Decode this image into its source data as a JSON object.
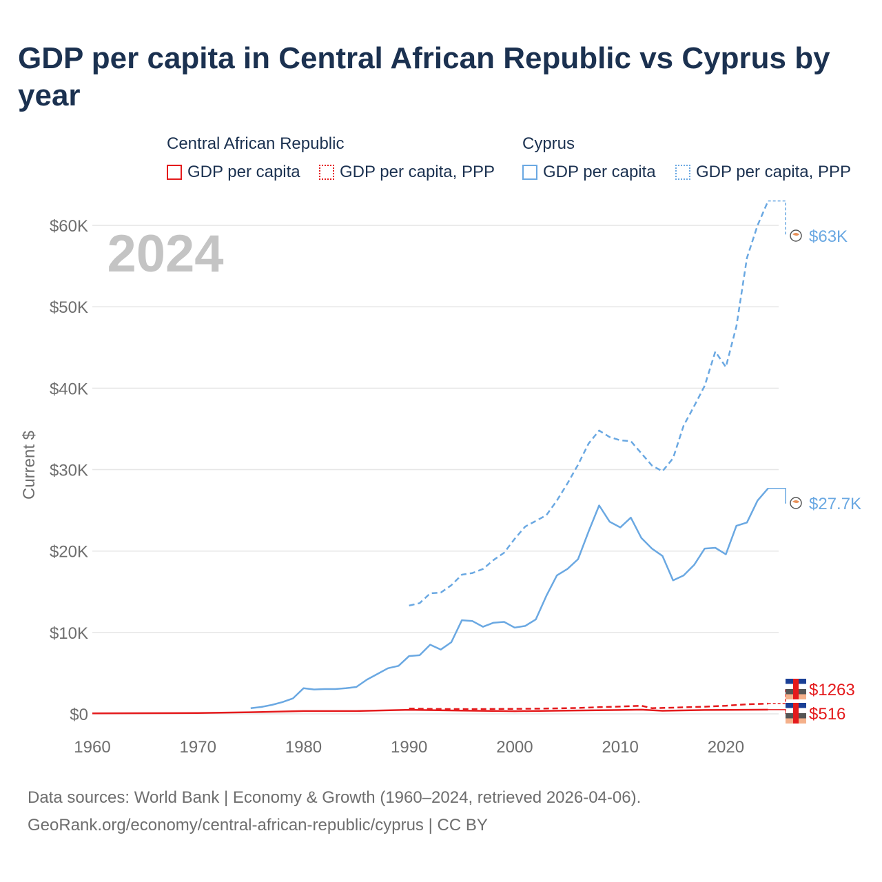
{
  "title": "GDP per capita in Central African Republic vs Cyprus by year",
  "legend": {
    "groups": [
      {
        "name": "Central African Republic",
        "color": "#e41a1c",
        "items": [
          "GDP per capita",
          "GDP per capita, PPP"
        ]
      },
      {
        "name": "Cyprus",
        "color": "#6aa8e2",
        "items": [
          "GDP per capita",
          "GDP per capita, PPP"
        ]
      }
    ]
  },
  "footer": {
    "line1": "Data sources: World Bank | Economy & Growth (1960–2024, retrieved 2026-04-06).",
    "line2": "GeoRank.org/economy/central-african-republic/cyprus | CC BY"
  },
  "chart_data": {
    "type": "line",
    "year_label": "2024",
    "ylabel": "Current $",
    "xlim": [
      1960,
      2025
    ],
    "ylim": [
      0,
      65000
    ],
    "x_ticks": [
      1960,
      1970,
      1980,
      1990,
      2000,
      2010,
      2020
    ],
    "x_tick_labels": [
      "1960",
      "1970",
      "1980",
      "1990",
      "2000",
      "2010",
      "2020"
    ],
    "y_ticks": [
      0,
      10000,
      20000,
      30000,
      40000,
      50000,
      60000
    ],
    "y_tick_labels": [
      "$0",
      "$10K",
      "$20K",
      "$30K",
      "$40K",
      "$50K",
      "$60K"
    ],
    "series": [
      {
        "name": "Cyprus GDP per capita, PPP",
        "country": "Cyprus",
        "color": "#6aa8e2",
        "dashed": true,
        "end_label": "$63K",
        "x": [
          1990,
          1991,
          1992,
          1993,
          1994,
          1995,
          1996,
          1997,
          1998,
          1999,
          2000,
          2001,
          2002,
          2003,
          2004,
          2005,
          2006,
          2007,
          2008,
          2009,
          2010,
          2011,
          2012,
          2013,
          2014,
          2015,
          2016,
          2017,
          2018,
          2019,
          2020,
          2021,
          2022,
          2023,
          2024
        ],
        "values": [
          13300,
          13600,
          14800,
          14900,
          15800,
          17100,
          17300,
          17800,
          18900,
          19800,
          21500,
          23000,
          23700,
          24400,
          26200,
          28300,
          30600,
          33200,
          34800,
          34000,
          33600,
          33500,
          32000,
          30500,
          29800,
          31400,
          35400,
          37800,
          40300,
          44500,
          42600,
          47600,
          56000,
          60000,
          63000
        ]
      },
      {
        "name": "Cyprus GDP per capita",
        "country": "Cyprus",
        "color": "#6aa8e2",
        "dashed": false,
        "end_label": "$27.7K",
        "x": [
          1975,
          1976,
          1977,
          1978,
          1979,
          1980,
          1981,
          1982,
          1983,
          1984,
          1985,
          1986,
          1987,
          1988,
          1989,
          1990,
          1991,
          1992,
          1993,
          1994,
          1995,
          1996,
          1997,
          1998,
          1999,
          2000,
          2001,
          2002,
          2003,
          2004,
          2005,
          2006,
          2007,
          2008,
          2009,
          2010,
          2011,
          2012,
          2013,
          2014,
          2015,
          2016,
          2017,
          2018,
          2019,
          2020,
          2021,
          2022,
          2023,
          2024
        ],
        "values": [
          700,
          850,
          1100,
          1450,
          1900,
          3150,
          3000,
          3050,
          3050,
          3150,
          3300,
          4200,
          4900,
          5600,
          5900,
          7100,
          7200,
          8500,
          7900,
          8800,
          11500,
          11400,
          10700,
          11200,
          11300,
          10600,
          10800,
          11600,
          14500,
          17000,
          17800,
          19000,
          22400,
          25600,
          23600,
          22900,
          24100,
          21600,
          20300,
          19400,
          16400,
          17000,
          18300,
          20300,
          20400,
          19600,
          23100,
          23500,
          26200,
          27700
        ]
      },
      {
        "name": "Central African Republic GDP per capita, PPP",
        "country": "Central African Republic",
        "color": "#e41a1c",
        "dashed": true,
        "end_label": "$1263",
        "x": [
          1990,
          1992,
          1994,
          1996,
          1998,
          2000,
          2002,
          2004,
          2006,
          2008,
          2010,
          2012,
          2013,
          2015,
          2018,
          2020,
          2022,
          2024
        ],
        "values": [
          650,
          610,
          590,
          580,
          600,
          620,
          640,
          680,
          730,
          820,
          900,
          1000,
          700,
          760,
          880,
          1000,
          1180,
          1263
        ]
      },
      {
        "name": "Central African Republic GDP per capita",
        "country": "Central African Republic",
        "color": "#e41a1c",
        "dashed": false,
        "end_label": "$516",
        "x": [
          1960,
          1965,
          1970,
          1975,
          1980,
          1985,
          1990,
          1995,
          2000,
          2005,
          2010,
          2012,
          2014,
          2018,
          2020,
          2024
        ],
        "values": [
          70,
          85,
          100,
          200,
          350,
          350,
          500,
          400,
          330,
          400,
          470,
          520,
          380,
          470,
          480,
          516
        ]
      }
    ]
  }
}
